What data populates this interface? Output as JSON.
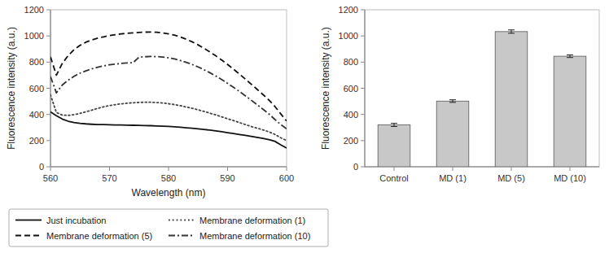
{
  "chart_data": [
    {
      "type": "line",
      "x_label": "Wavelength (nm)",
      "y_label": "Fluorescence intensity (a.u.)",
      "x": [
        560,
        561,
        562,
        563,
        564,
        565,
        566,
        567,
        568,
        569,
        570,
        571,
        572,
        573,
        574,
        575,
        576,
        577,
        578,
        579,
        580,
        581,
        582,
        583,
        584,
        585,
        586,
        587,
        588,
        589,
        590,
        591,
        592,
        593,
        594,
        595,
        596,
        597,
        598,
        599,
        600
      ],
      "series": [
        {
          "name": "Just incubation",
          "color": "#111111",
          "line_style": "solid",
          "values": [
            420,
            390,
            365,
            348,
            338,
            332,
            328,
            325,
            323,
            322,
            321,
            320,
            319,
            318,
            317,
            316,
            315,
            314,
            312,
            310,
            308,
            305,
            302,
            298,
            294,
            290,
            285,
            280,
            275,
            268,
            261,
            254,
            247,
            240,
            233,
            225,
            217,
            208,
            195,
            168,
            143
          ]
        },
        {
          "name": "Membrane deformation (1)",
          "color": "#444444",
          "line_style": "dotted",
          "values": [
            550,
            415,
            395,
            393,
            398,
            408,
            420,
            433,
            446,
            458,
            468,
            475,
            481,
            486,
            489,
            492,
            493,
            493,
            491,
            487,
            482,
            475,
            467,
            457,
            447,
            436,
            423,
            410,
            397,
            382,
            367,
            353,
            338,
            323,
            308,
            295,
            282,
            267,
            248,
            222,
            200
          ]
        },
        {
          "name": "Membrane deformation (5)",
          "color": "#111111",
          "line_style": "dashed",
          "values": [
            840,
            700,
            790,
            850,
            895,
            928,
            952,
            970,
            983,
            993,
            1003,
            1010,
            1016,
            1020,
            1024,
            1027,
            1029,
            1030,
            1028,
            1023,
            1016,
            1006,
            992,
            975,
            955,
            932,
            906,
            878,
            848,
            816,
            782,
            746,
            709,
            671,
            632,
            592,
            552,
            510,
            462,
            405,
            350
          ]
        },
        {
          "name": "Membrane deformation (10)",
          "color": "#333333",
          "line_style": "dashdot",
          "values": [
            690,
            565,
            625,
            662,
            692,
            715,
            733,
            748,
            761,
            771,
            779,
            785,
            790,
            794,
            796,
            838,
            841,
            843,
            842,
            839,
            833,
            824,
            812,
            798,
            782,
            763,
            742,
            719,
            694,
            667,
            638,
            608,
            576,
            543,
            509,
            475,
            440,
            404,
            362,
            323,
            290
          ]
        }
      ],
      "xlim": [
        560,
        600
      ],
      "ylim": [
        0,
        1200
      ],
      "xticks": [
        560,
        570,
        580,
        590,
        600
      ],
      "yticks": [
        0,
        200,
        400,
        600,
        800,
        1000,
        1200
      ],
      "legend": "bottom"
    },
    {
      "type": "bar",
      "y_label": "Fluorescence intensity (a.u.)",
      "categories": [
        "Control",
        "MD (1)",
        "MD (5)",
        "MD (10)"
      ],
      "values": [
        320,
        502,
        1033,
        845
      ],
      "errors": [
        12,
        10,
        13,
        10
      ],
      "color": "#c8c8c8",
      "ylim": [
        0,
        1200
      ],
      "yticks": [
        0,
        200,
        400,
        600,
        800,
        1000,
        1200
      ]
    }
  ]
}
